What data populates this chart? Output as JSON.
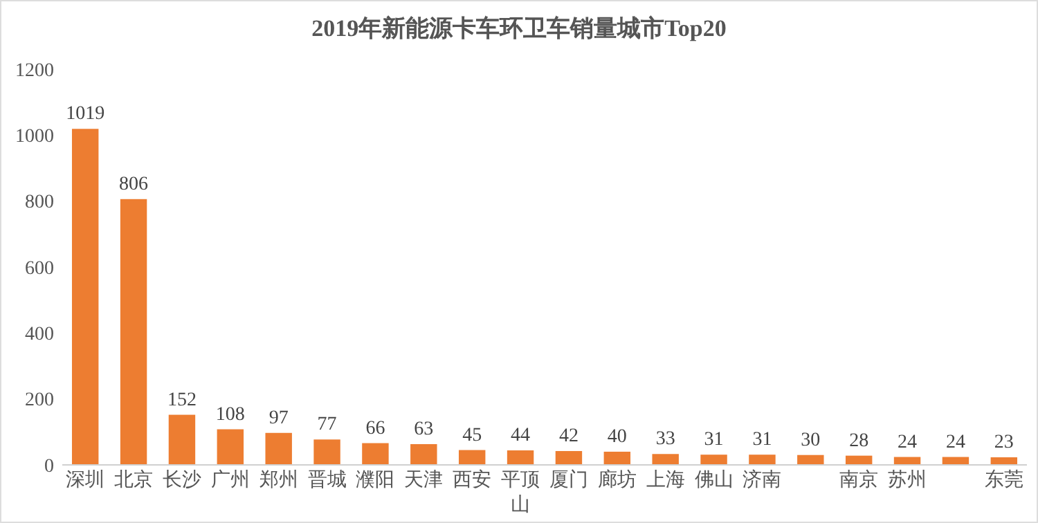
{
  "chart_data": {
    "type": "bar",
    "title": "2019年新能源卡车环卫车销量城市Top20",
    "categories": [
      "深圳",
      "北京",
      "长沙",
      "广州",
      "郑州",
      "晋城",
      "濮阳",
      "天津",
      "西安",
      "平顶山",
      "厦门",
      "廊坊",
      "上海",
      "佛山",
      "济南",
      null,
      "南京",
      "苏州",
      null,
      "东莞"
    ],
    "values": [
      1019,
      806,
      152,
      108,
      97,
      77,
      66,
      63,
      45,
      44,
      42,
      40,
      33,
      31,
      31,
      30,
      28,
      24,
      24,
      23
    ],
    "color": "#ed7d31",
    "ylim": [
      0,
      1200
    ],
    "yticks": [
      0,
      200,
      400,
      600,
      800,
      1000,
      1200
    ],
    "data_labels": true
  }
}
